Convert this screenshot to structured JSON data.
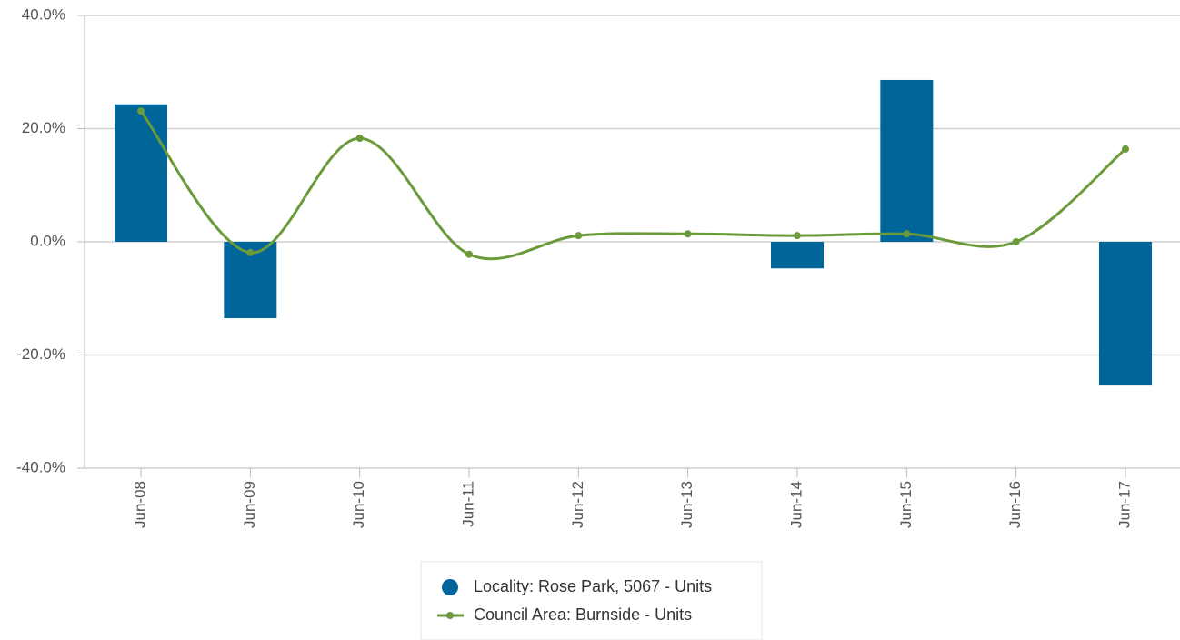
{
  "chart_data": {
    "type": "bar_line",
    "categories": [
      "Jun-08",
      "Jun-09",
      "Jun-10",
      "Jun-11",
      "Jun-12",
      "Jun-13",
      "Jun-14",
      "Jun-15",
      "Jun-16",
      "Jun-17"
    ],
    "series": [
      {
        "name": "Locality: Rose Park, 5067 - Units",
        "type": "bar",
        "color": "#006699",
        "values": [
          24.3,
          -13.5,
          null,
          null,
          null,
          null,
          -4.7,
          28.6,
          null,
          -25.4
        ]
      },
      {
        "name": "Council Area: Burnside - Units",
        "type": "line",
        "color": "#6a9a3a",
        "values": [
          23.1,
          -1.9,
          18.3,
          -2.2,
          1.1,
          1.4,
          1.1,
          1.4,
          0,
          16.4
        ]
      }
    ],
    "ylim": [
      -40,
      40
    ],
    "yticks": [
      {
        "value": -40,
        "label": "-40.0%"
      },
      {
        "value": -20,
        "label": "-20.0%"
      },
      {
        "value": 0,
        "label": "0.0%"
      },
      {
        "value": 20,
        "label": "20.0%"
      },
      {
        "value": 40,
        "label": "40.0%"
      }
    ],
    "grid": true,
    "legend": "bottom"
  }
}
